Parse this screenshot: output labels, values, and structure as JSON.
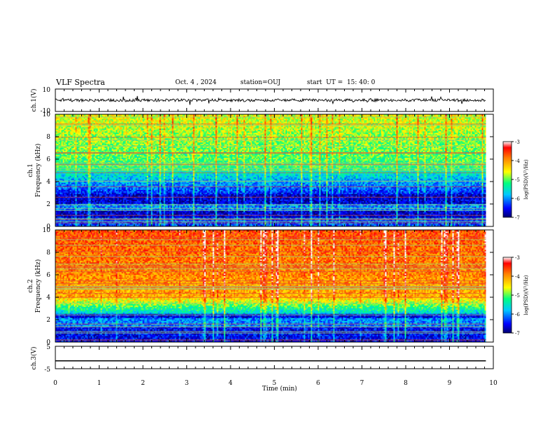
{
  "header": {
    "title": "VLF Spectra",
    "date": "Oct. 4 , 2024",
    "station": "station=OUJ",
    "start_ut": "start  UT =  15: 40: 0"
  },
  "colorbar": {
    "label": "log(PSD)(V²/Hz)",
    "ticks": [
      "-3",
      "-4",
      "-5",
      "-6",
      "-7"
    ],
    "range": [
      -7,
      -3
    ],
    "colors": [
      "#000070",
      "#0000ff",
      "#00c0ff",
      "#00ff80",
      "#ffff00",
      "#ff8000",
      "#ff0000",
      "#ffffff"
    ]
  },
  "chart_data": [
    {
      "type": "line",
      "ylabel": "ch.1(V)",
      "ylim": [
        -10,
        10
      ],
      "yticks": [
        "10",
        "-10"
      ],
      "xlim": [
        0,
        10
      ],
      "description_level": 0
    },
    {
      "type": "heatmap",
      "ylabel": "ch.1\nFrequency (kHz)",
      "ylabel_top": "ch.1",
      "ylabel_bottom": "Frequency (kHz)",
      "ylim": [
        0,
        10
      ],
      "yticks": [
        "0",
        "2",
        "4",
        "6",
        "8",
        "10"
      ],
      "xlim": [
        0,
        10
      ]
    },
    {
      "type": "heatmap",
      "ylabel_top": "ch.2",
      "ylabel_bottom": "Frequency (kHz)",
      "ylim": [
        0,
        10
      ],
      "yticks": [
        "0",
        "2",
        "4",
        "6",
        "8",
        "10"
      ],
      "xlim": [
        0,
        10
      ]
    },
    {
      "type": "line",
      "ylabel": "ch.3(V)",
      "ylim": [
        -5,
        5
      ],
      "yticks": [
        "5",
        "-5"
      ],
      "xlim": [
        0,
        10
      ],
      "level": -1.5
    }
  ],
  "xaxis": {
    "label": "Time (min)",
    "ticks": [
      "0",
      "1",
      "2",
      "3",
      "4",
      "5",
      "6",
      "7",
      "8",
      "9",
      "10"
    ],
    "data_end": 9.83
  }
}
